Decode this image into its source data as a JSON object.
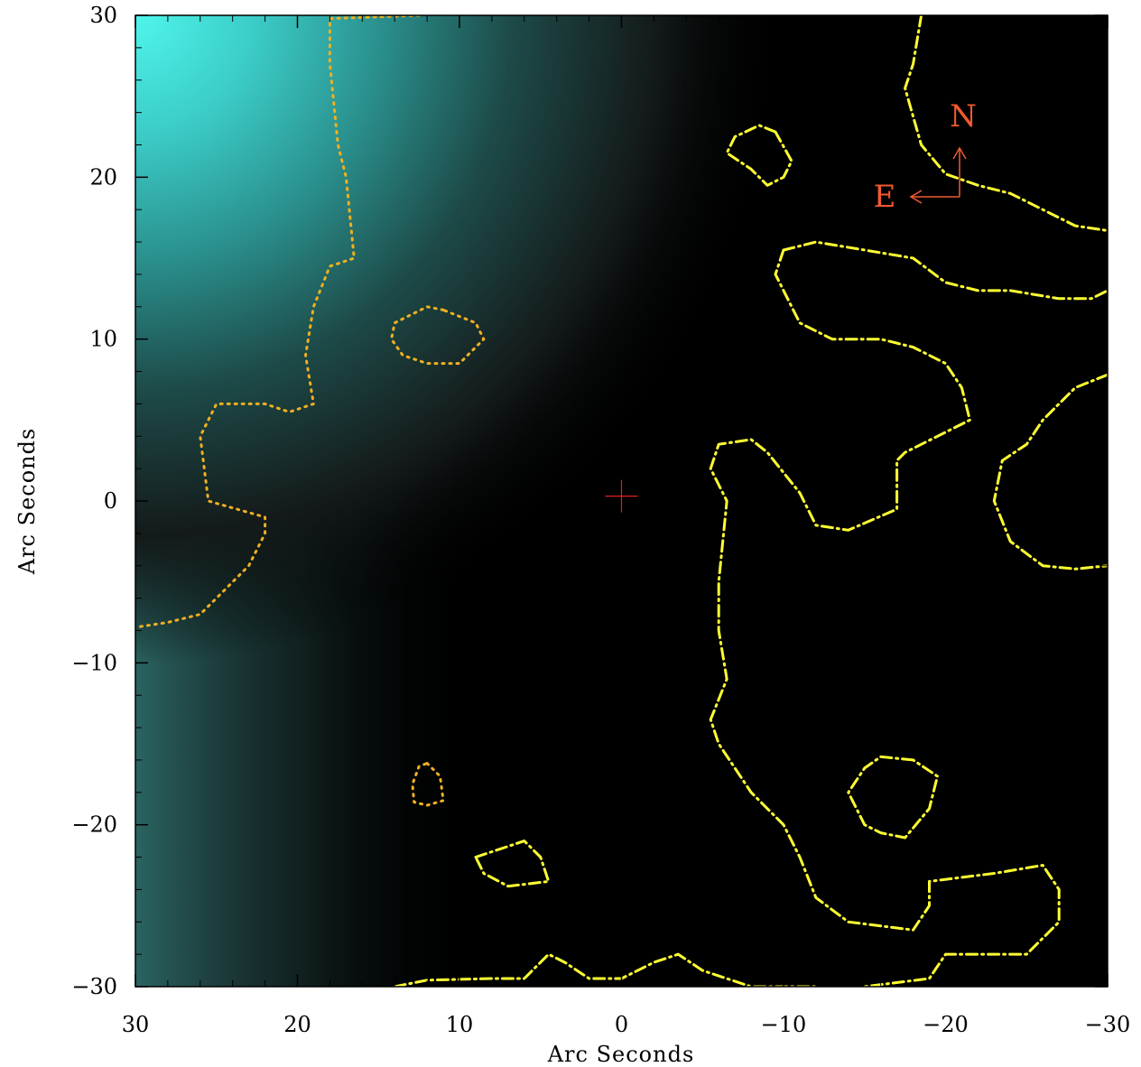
{
  "chart_data": {
    "type": "image-contour",
    "xlabel": "Arc Seconds",
    "ylabel": "Arc Seconds",
    "xlim": [
      30,
      -30
    ],
    "ylim": [
      -30,
      30
    ],
    "x_ticks": [
      30,
      20,
      10,
      0,
      -10,
      -20,
      -30
    ],
    "y_ticks": [
      30,
      20,
      10,
      0,
      -10,
      -20,
      -30
    ],
    "x_tick_labels": [
      "30",
      "20",
      "10",
      "0",
      "−10",
      "−20",
      "−30"
    ],
    "y_tick_labels": [
      "30",
      "20",
      "10",
      "0",
      "−10",
      "−20",
      "−30"
    ],
    "center_marker": {
      "x": 0,
      "y": 0.3,
      "color": "#e02020"
    },
    "compass": {
      "north_label": "N",
      "east_label": "E",
      "color": "#f05a30"
    },
    "contours": [
      {
        "style": "dotted",
        "color": "#f0b020",
        "points": [
          [
            12.5,
            30
          ],
          [
            18,
            29.8
          ],
          [
            18,
            27
          ],
          [
            17.5,
            22
          ],
          [
            17,
            20
          ],
          [
            16.5,
            15
          ],
          [
            18,
            14.5
          ],
          [
            19,
            12
          ],
          [
            19.5,
            9
          ],
          [
            19,
            6
          ],
          [
            20.5,
            5.5
          ],
          [
            22,
            6
          ],
          [
            25,
            6
          ],
          [
            26,
            4
          ],
          [
            25.5,
            0
          ],
          [
            22,
            -1
          ],
          [
            22,
            -2
          ],
          [
            23,
            -4
          ],
          [
            25,
            -6
          ],
          [
            26,
            -7
          ],
          [
            28,
            -7.5
          ],
          [
            30,
            -7.8
          ]
        ]
      },
      {
        "style": "dotted",
        "color": "#f0b020",
        "points": [
          [
            11,
            11.8
          ],
          [
            12,
            12
          ],
          [
            14,
            11
          ],
          [
            14.2,
            10
          ],
          [
            13.5,
            9
          ],
          [
            12,
            8.5
          ],
          [
            10,
            8.5
          ],
          [
            8.5,
            10
          ],
          [
            9,
            11
          ],
          [
            11,
            11.8
          ]
        ]
      },
      {
        "style": "dotted",
        "color": "#f0b020",
        "points": [
          [
            12,
            -16.2
          ],
          [
            11.2,
            -17
          ],
          [
            11,
            -18.5
          ],
          [
            12,
            -18.8
          ],
          [
            12.8,
            -18.6
          ],
          [
            12.9,
            -17.5
          ],
          [
            12.5,
            -16.4
          ],
          [
            12,
            -16.2
          ]
        ]
      },
      {
        "style": "dash-dot",
        "color": "#ffff33",
        "points": [
          [
            -18.5,
            30
          ],
          [
            -18,
            27
          ],
          [
            -17.5,
            25.5
          ],
          [
            -18.5,
            22
          ],
          [
            -20,
            20.2
          ],
          [
            -22,
            19.5
          ],
          [
            -24,
            19
          ],
          [
            -26,
            18
          ],
          [
            -28,
            17
          ],
          [
            -30,
            16.7
          ]
        ]
      },
      {
        "style": "dash-dot",
        "color": "#ffff33",
        "points": [
          [
            -10,
            15.5
          ],
          [
            -12,
            16
          ],
          [
            -15,
            15.5
          ],
          [
            -18,
            15
          ],
          [
            -20,
            13.5
          ],
          [
            -22,
            13
          ],
          [
            -24,
            13
          ],
          [
            -27,
            12.5
          ],
          [
            -29,
            12.5
          ],
          [
            -30,
            13
          ]
        ]
      },
      {
        "style": "dash-dot",
        "color": "#ffff33",
        "points": [
          [
            -10,
            15.5
          ],
          [
            -9.5,
            14
          ],
          [
            -11,
            11
          ],
          [
            -13,
            10
          ],
          [
            -16,
            10
          ],
          [
            -18,
            9.5
          ],
          [
            -20,
            8.5
          ],
          [
            -21,
            7
          ],
          [
            -21.5,
            5
          ],
          [
            -19.5,
            4
          ],
          [
            -17.5,
            3
          ],
          [
            -17,
            2.5
          ],
          [
            -17,
            -0.5
          ],
          [
            -14,
            -1.8
          ],
          [
            -12,
            -1.5
          ],
          [
            -11,
            0.5
          ],
          [
            -9,
            3
          ],
          [
            -8,
            3.8
          ],
          [
            -6,
            3.5
          ],
          [
            -5.5,
            2
          ],
          [
            -6.5,
            0
          ],
          [
            -6,
            -5
          ],
          [
            -6,
            -8
          ],
          [
            -6.5,
            -11
          ],
          [
            -5.5,
            -13.5
          ],
          [
            -6,
            -15
          ],
          [
            -8,
            -18
          ],
          [
            -10,
            -20
          ],
          [
            -11,
            -22
          ],
          [
            -12,
            -24.5
          ],
          [
            -14,
            -26
          ],
          [
            -18,
            -26.5
          ],
          [
            -19,
            -25
          ],
          [
            -19,
            -23.5
          ],
          [
            -23,
            -23
          ],
          [
            -26,
            -22.5
          ],
          [
            -27,
            -24
          ],
          [
            -27,
            -26
          ],
          [
            -25,
            -28
          ],
          [
            -20,
            -28
          ],
          [
            -19,
            -29.5
          ],
          [
            -15,
            -30
          ]
        ]
      },
      {
        "style": "dash-dot",
        "color": "#ffff33",
        "points": [
          [
            -30,
            7.8
          ],
          [
            -28,
            7
          ],
          [
            -26,
            5
          ],
          [
            -25,
            3.5
          ],
          [
            -23.5,
            2.5
          ],
          [
            -23,
            0
          ],
          [
            -24,
            -2.5
          ],
          [
            -26,
            -4
          ],
          [
            -28,
            -4.2
          ],
          [
            -30,
            -4
          ]
        ]
      },
      {
        "style": "dash-dot",
        "color": "#ffff33",
        "points": [
          [
            -9.5,
            22.8
          ],
          [
            -8.5,
            23.2
          ],
          [
            -7,
            22.5
          ],
          [
            -6.5,
            21.5
          ],
          [
            -8,
            20.5
          ],
          [
            -9,
            19.5
          ],
          [
            -10,
            20
          ],
          [
            -10.5,
            21
          ],
          [
            -9.5,
            22.8
          ]
        ]
      },
      {
        "style": "dash-dot",
        "color": "#ffff33",
        "points": [
          [
            -18,
            -16
          ],
          [
            -16,
            -15.8
          ],
          [
            -15,
            -16.5
          ],
          [
            -14,
            -18
          ],
          [
            -15,
            -20
          ],
          [
            -16,
            -20.5
          ],
          [
            -17.5,
            -20.8
          ],
          [
            -19,
            -19
          ],
          [
            -19.5,
            -17
          ],
          [
            -18,
            -16
          ]
        ]
      },
      {
        "style": "dash-dot",
        "color": "#ffff33",
        "points": [
          [
            9,
            -22
          ],
          [
            6,
            -21
          ],
          [
            5,
            -22
          ],
          [
            4.5,
            -23.5
          ],
          [
            7,
            -23.8
          ],
          [
            8.5,
            -23
          ],
          [
            9,
            -22
          ]
        ]
      },
      {
        "style": "dash-dot",
        "color": "#ffff33",
        "points": [
          [
            14,
            -30
          ],
          [
            12,
            -29.6
          ],
          [
            8,
            -29.5
          ],
          [
            6,
            -29.5
          ],
          [
            4.5,
            -28
          ],
          [
            3.5,
            -28.5
          ],
          [
            2,
            -29.5
          ],
          [
            0,
            -29.5
          ],
          [
            -2,
            -28.5
          ],
          [
            -3.5,
            -28
          ],
          [
            -5,
            -29
          ],
          [
            -8,
            -30
          ],
          [
            -12,
            -30
          ]
        ]
      }
    ]
  }
}
